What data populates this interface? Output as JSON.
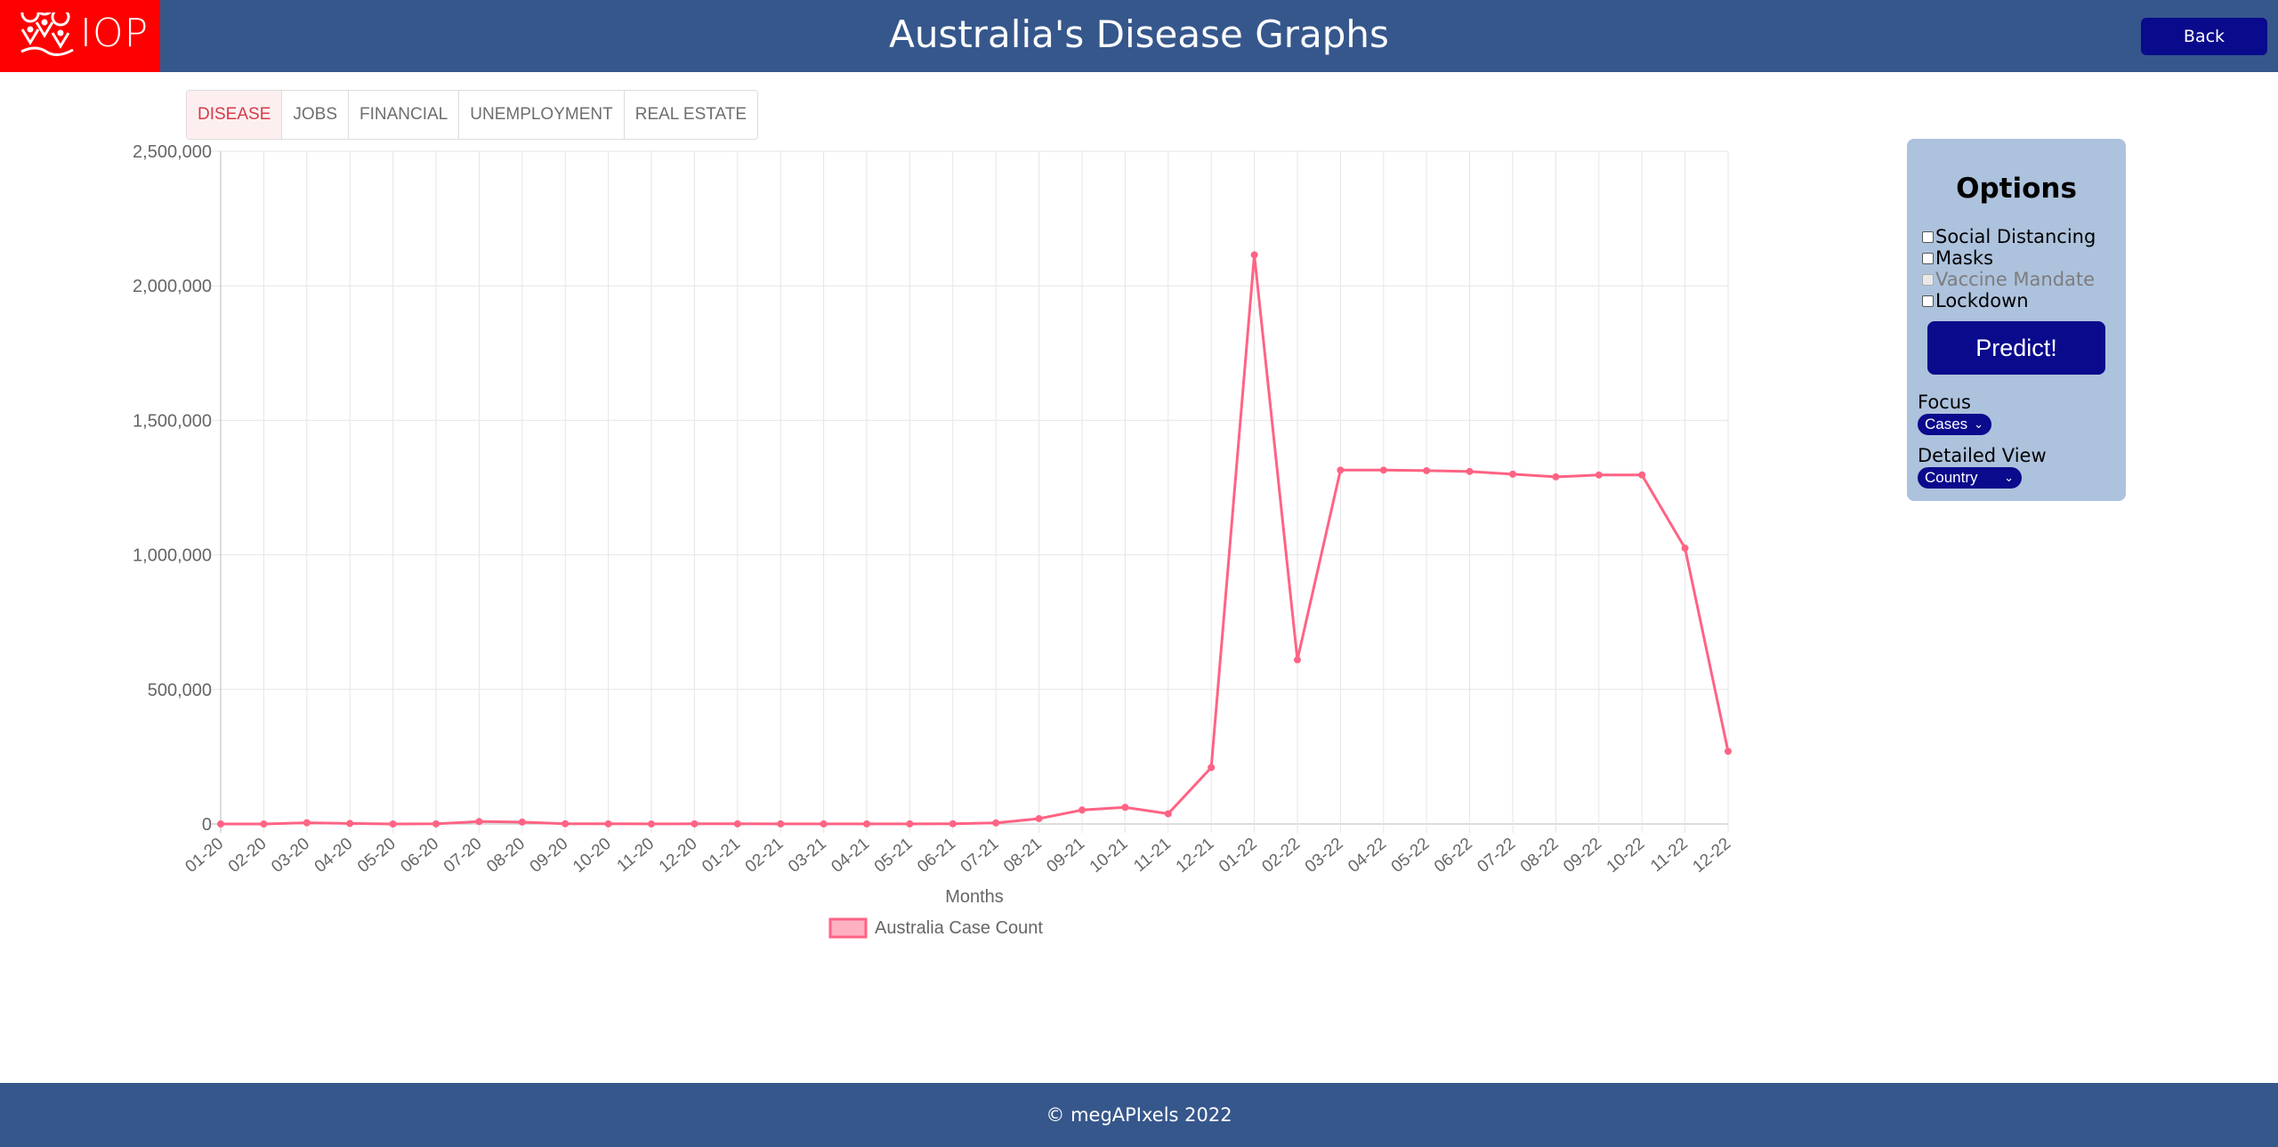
{
  "header": {
    "logo_text": "IOP",
    "title": "Australia's Disease Graphs",
    "back_label": "Back"
  },
  "tabs": [
    {
      "label": "DISEASE",
      "active": true
    },
    {
      "label": "JOBS",
      "active": false
    },
    {
      "label": "FINANCIAL",
      "active": false
    },
    {
      "label": "UNEMPLOYMENT",
      "active": false
    },
    {
      "label": "REAL ESTATE",
      "active": false
    }
  ],
  "options": {
    "title": "Options",
    "checkboxes": [
      {
        "label": "Social Distancing",
        "checked": false,
        "disabled": false
      },
      {
        "label": "Masks",
        "checked": false,
        "disabled": false
      },
      {
        "label": "Vaccine Mandate",
        "checked": false,
        "disabled": true
      },
      {
        "label": "Lockdown",
        "checked": false,
        "disabled": false
      }
    ],
    "predict_label": "Predict!",
    "focus_label": "Focus",
    "focus_value": "Cases",
    "detailed_label": "Detailed View",
    "detailed_value": "Country"
  },
  "chart_data": {
    "type": "line",
    "xlabel": "Months",
    "ylabel": "",
    "ylim": [
      0,
      2500000
    ],
    "yticks": [
      0,
      500000,
      1000000,
      1500000,
      2000000,
      2500000
    ],
    "ytick_labels": [
      "0",
      "500,000",
      "1,000,000",
      "1,500,000",
      "2,000,000",
      "2,500,000"
    ],
    "grid": true,
    "legend_position": "bottom",
    "categories": [
      "01-20",
      "02-20",
      "03-20",
      "04-20",
      "05-20",
      "06-20",
      "07-20",
      "08-20",
      "09-20",
      "10-20",
      "11-20",
      "12-20",
      "01-21",
      "02-21",
      "03-21",
      "04-21",
      "05-21",
      "06-21",
      "07-21",
      "08-21",
      "09-21",
      "10-21",
      "11-21",
      "12-21",
      "01-22",
      "02-22",
      "03-22",
      "04-22",
      "05-22",
      "06-22",
      "07-22",
      "08-22",
      "09-22",
      "10-22",
      "11-22",
      "12-22"
    ],
    "series": [
      {
        "name": "Australia Case Count",
        "color": "#ff6384",
        "values": [
          0,
          0,
          4500,
          2000,
          0,
          500,
          9000,
          7000,
          1000,
          500,
          200,
          500,
          500,
          300,
          300,
          300,
          400,
          800,
          4000,
          20000,
          52000,
          62000,
          38000,
          210000,
          2115000,
          610000,
          1315000,
          1315000,
          1313000,
          1310000,
          1300000,
          1290000,
          1297000,
          1297000,
          1025000,
          270000
        ]
      }
    ]
  },
  "footer": {
    "text": "© megAPIxels 2022"
  }
}
